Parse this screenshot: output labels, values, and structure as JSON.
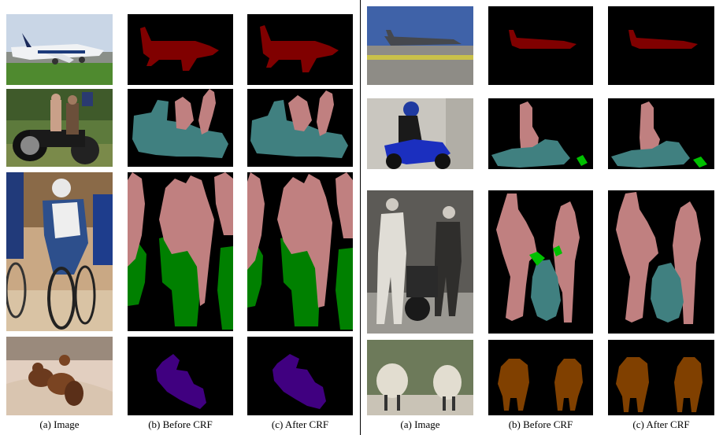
{
  "figure": {
    "left_panel": {
      "captions": [
        "(a) Image",
        "(b) Before CRF",
        "(c) After CRF"
      ],
      "rows": [
        {
          "image": "airplane photo",
          "mask_class": "aeroplane",
          "mask_color": "#800000"
        },
        {
          "image": "motorbike with people photo",
          "mask_class": "person+motorbike",
          "mask_color": "#c08080"
        },
        {
          "image": "cyclists race photo",
          "mask_class": "person+bicycle",
          "mask_color": "#008000"
        },
        {
          "image": "dogs on blanket photo",
          "mask_class": "dog",
          "mask_color": "#400080"
        }
      ]
    },
    "right_panel": {
      "captions": [
        "(a) Image",
        "(b) Before CRF",
        "(c) After CRF"
      ],
      "rows": [
        {
          "image": "tanker airplane photo",
          "mask_class": "aeroplane",
          "mask_color": "#800000"
        },
        {
          "image": "rider on motocross bike photo",
          "mask_class": "person+motorbike",
          "mask_color": "#408080"
        },
        {
          "image": "two people with motorcycle photo",
          "mask_class": "person+motorbike",
          "mask_color": "#c08080"
        },
        {
          "image": "two sheep photo",
          "mask_class": "sheep",
          "mask_color": "#804000"
        }
      ]
    },
    "palette": {
      "aeroplane": "#800000",
      "person": "#c08080",
      "motorbike": "#408080",
      "bicycle": "#008000",
      "dog": "#400080",
      "sheep": "#804000",
      "background": "#000000"
    }
  }
}
